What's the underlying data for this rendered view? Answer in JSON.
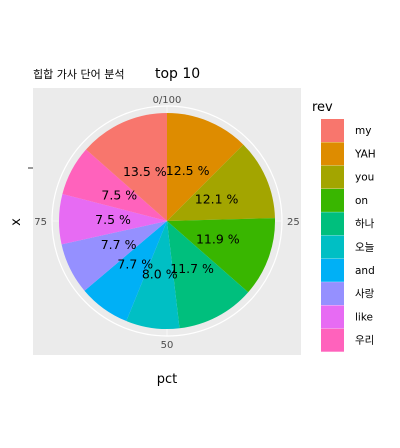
{
  "chart_data": {
    "type": "pie",
    "title": "힙합 가사 단어 분석 top 10",
    "title_prefix": "힙합 가사 단어 분석",
    "title_suffix": "top 10",
    "xlabel": "x",
    "ylabel": "pct",
    "legend_title": "rev",
    "legend_position": "right",
    "angle_ticks": [
      "0/100",
      "25",
      "50",
      "75"
    ],
    "slices": [
      {
        "name": "rev-slice-YAH",
        "category": "YAH",
        "value": 12.5,
        "label": "12.5 %",
        "color": "#DE8C00"
      },
      {
        "name": "rev-slice-you",
        "category": "you",
        "value": 12.1,
        "label": "12.1 %",
        "color": "#A3A500"
      },
      {
        "name": "rev-slice-on",
        "category": "on",
        "value": 11.9,
        "label": "11.9 %",
        "color": "#39B600"
      },
      {
        "name": "rev-slice-hana",
        "category": "하나",
        "value": 11.7,
        "label": "11.7 %",
        "color": "#00BF7D"
      },
      {
        "name": "rev-slice-oneul",
        "category": "오늘",
        "value": 8.0,
        "label": "8.0 %",
        "color": "#00BFC4"
      },
      {
        "name": "rev-slice-and",
        "category": "and",
        "value": 7.7,
        "label": "7.7 %",
        "color": "#00B0F6"
      },
      {
        "name": "rev-slice-sarang",
        "category": "사랑",
        "value": 7.7,
        "label": "7.7 %",
        "color": "#9590FF"
      },
      {
        "name": "rev-slice-like",
        "category": "like",
        "value": 7.5,
        "label": "7.5 %",
        "color": "#E76BF3"
      },
      {
        "name": "rev-slice-uri",
        "category": "우리",
        "value": 7.5,
        "label": "7.5 %",
        "color": "#FF62BC"
      },
      {
        "name": "rev-slice-my",
        "category": "my",
        "value": 13.5,
        "label": "13.5 %",
        "color": "#F8766D"
      }
    ],
    "legend_order": [
      "my",
      "YAH",
      "you",
      "on",
      "하나",
      "오늘",
      "and",
      "사랑",
      "like",
      "우리"
    ],
    "legend_colors": [
      "#F8766D",
      "#DE8C00",
      "#A3A500",
      "#39B600",
      "#00BF7D",
      "#00BFC4",
      "#00B0F6",
      "#9590FF",
      "#E76BF3",
      "#FF62BC"
    ],
    "panel_background": "#EBEBEB",
    "grid": true
  }
}
